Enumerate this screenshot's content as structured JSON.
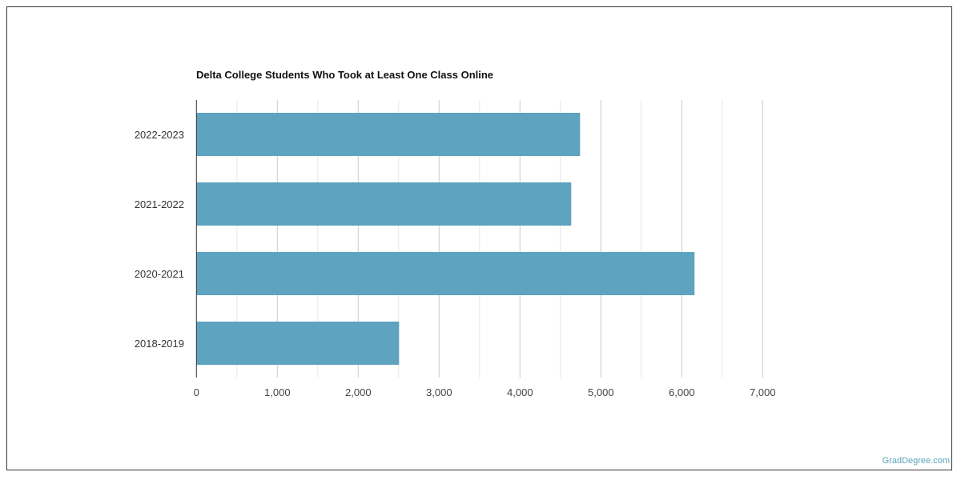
{
  "chart_data": {
    "type": "bar",
    "orientation": "horizontal",
    "title": "Delta College Students Who Took at Least One Class Online",
    "categories": [
      "2022-2023",
      "2021-2022",
      "2020-2021",
      "2018-2019"
    ],
    "values": [
      4743,
      4634,
      6158,
      2505
    ],
    "xlim": [
      0,
      7000
    ],
    "xticks": [
      0,
      1000,
      2000,
      3000,
      4000,
      5000,
      6000,
      7000
    ],
    "xtick_labels": [
      "0",
      "1,000",
      "2,000",
      "3,000",
      "4,000",
      "5,000",
      "6,000",
      "7,000"
    ],
    "grid": true,
    "bar_color": "#5ea3c0"
  },
  "credit": "GradDegree.com"
}
